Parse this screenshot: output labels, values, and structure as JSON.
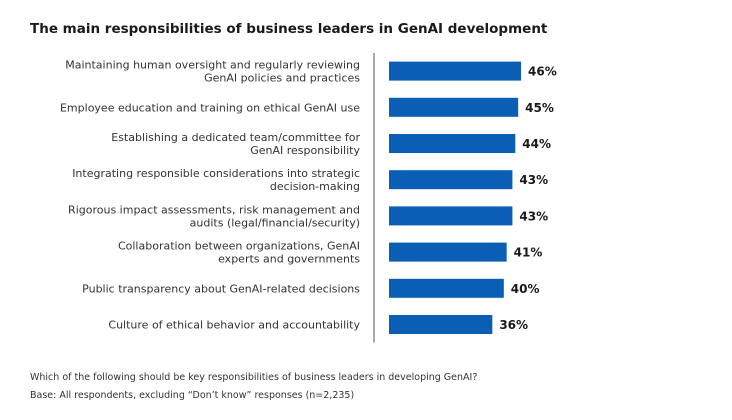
{
  "chart_data": {
    "type": "bar",
    "orientation": "horizontal",
    "title": "The main responsibilities of business leaders in GenAI development",
    "categories": [
      [
        "Maintaining human oversight and regularly reviewing",
        "GenAI policies and practices"
      ],
      [
        "Employee education and training on ethical GenAI use"
      ],
      [
        "Establishing a dedicated team/committee for",
        "GenAI responsibility"
      ],
      [
        "Integrating responsible considerations into strategic",
        "decision-making"
      ],
      [
        "Rigorous impact assessments, risk management and",
        "audits (legal/financial/security)"
      ],
      [
        "Collaboration between organizations, GenAI",
        "experts and governments"
      ],
      [
        "Public transparency about GenAI-related decisions"
      ],
      [
        "Culture of ethical behavior and accountability"
      ]
    ],
    "values": [
      46,
      45,
      44,
      43,
      43,
      41,
      40,
      36
    ],
    "value_labels": [
      "46%",
      "45%",
      "44%",
      "43%",
      "43%",
      "41%",
      "40%",
      "36%"
    ],
    "unit": "%",
    "xlim": [
      0,
      100
    ],
    "bar_color": "#0a5eb4",
    "axis_color": "#555555",
    "grid": false,
    "legend": "none"
  },
  "footnote": {
    "question": "Which of the following should be key responsibilities of business leaders in developing GenAI?",
    "base": "Base: All respondents, excluding “Don’t know” responses (n=2,235)"
  }
}
